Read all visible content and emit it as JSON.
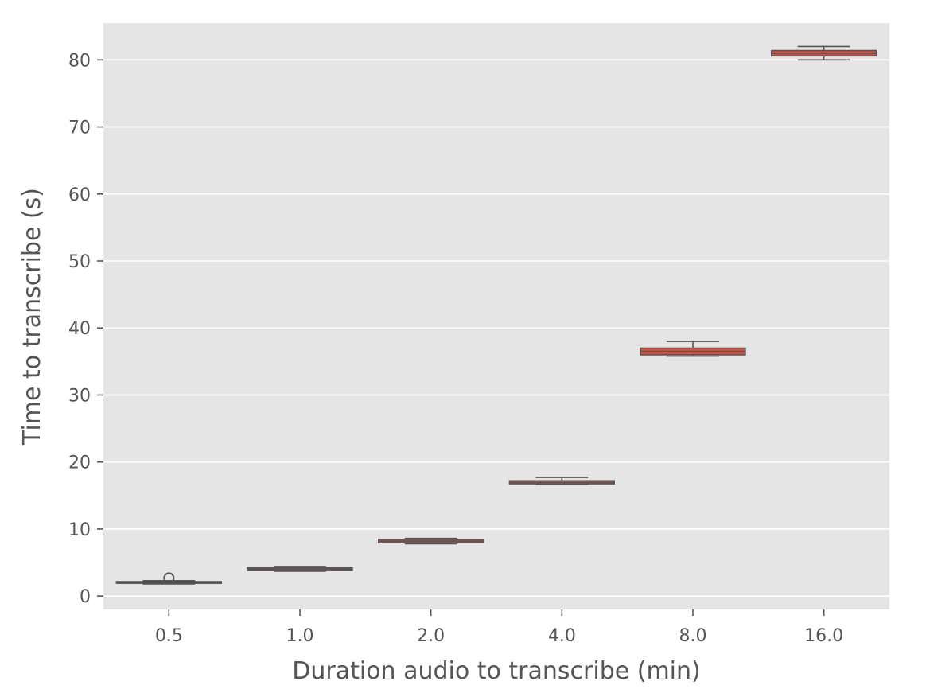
{
  "chart_data": {
    "type": "box",
    "xlabel": "Duration audio to transcribe (min)",
    "ylabel": "Time to transcribe (s)",
    "ylim": [
      -2.0,
      85.5
    ],
    "yticks": [
      0,
      10,
      20,
      30,
      40,
      50,
      60,
      70,
      80
    ],
    "grid": true,
    "categories": [
      "0.5",
      "1.0",
      "2.0",
      "4.0",
      "8.0",
      "16.0"
    ],
    "boxes": [
      {
        "category": "0.5",
        "whisker_low": 1.8,
        "q1": 1.9,
        "median": 2.05,
        "q3": 2.15,
        "whisker_high": 2.3,
        "outliers": [
          2.7
        ]
      },
      {
        "category": "1.0",
        "whisker_low": 3.7,
        "q1": 3.8,
        "median": 4.0,
        "q3": 4.2,
        "whisker_high": 4.3,
        "outliers": []
      },
      {
        "category": "2.0",
        "whisker_low": 7.8,
        "q1": 7.95,
        "median": 8.2,
        "q3": 8.45,
        "whisker_high": 8.6,
        "outliers": []
      },
      {
        "category": "4.0",
        "whisker_low": 16.7,
        "q1": 16.75,
        "median": 16.95,
        "q3": 17.2,
        "whisker_high": 17.7,
        "outliers": []
      },
      {
        "category": "8.0",
        "whisker_low": 35.8,
        "q1": 36.0,
        "median": 36.5,
        "q3": 37.0,
        "whisker_high": 38.0,
        "outliers": []
      },
      {
        "category": "16.0",
        "whisker_low": 80.0,
        "q1": 80.6,
        "median": 81.0,
        "q3": 81.4,
        "whisker_high": 82.0,
        "outliers": []
      }
    ],
    "colors": {
      "plot_background": "#e5e5e5",
      "grid": "#ffffff",
      "box_fill": "#e24a33",
      "box_edge": "#555555",
      "tick_text": "#555555",
      "label_text": "#555555"
    }
  }
}
